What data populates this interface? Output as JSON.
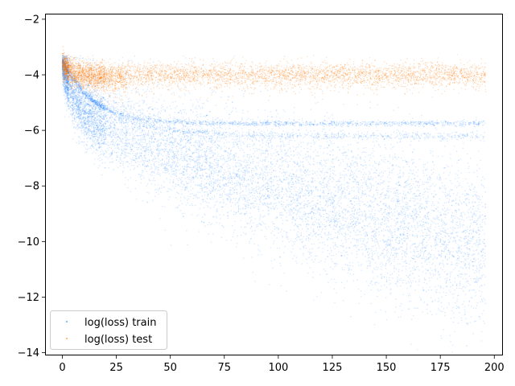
{
  "chart_data": {
    "type": "scatter",
    "title": "",
    "xlabel": "",
    "ylabel": "",
    "xlim": [
      -8,
      204
    ],
    "ylim": [
      -14.1,
      -1.8
    ],
    "xticks": [
      0,
      25,
      50,
      75,
      100,
      125,
      150,
      175,
      200
    ],
    "yticks": [
      -14,
      -12,
      -10,
      -8,
      -6,
      -4,
      -2
    ],
    "grid": false,
    "legend": {
      "position": "lower-left"
    },
    "series": [
      {
        "name": "log(loss) train",
        "color": "#1f77b4",
        "render_color": "#1a80ff",
        "approx_points": [
          [
            0,
            -2.6
          ],
          [
            1,
            -3.3
          ],
          [
            2,
            -3.6
          ],
          [
            5,
            -4.1
          ],
          [
            10,
            -4.6
          ],
          [
            25,
            -5.3
          ],
          [
            50,
            -5.8
          ],
          [
            100,
            -5.75
          ],
          [
            150,
            -5.75
          ],
          [
            196,
            -5.75
          ],
          [
            50,
            -6.0
          ],
          [
            100,
            -6.1
          ],
          [
            196,
            -6.2
          ],
          [
            25,
            -6.5
          ],
          [
            50,
            -7.3
          ],
          [
            75,
            -8.0
          ],
          [
            100,
            -8.6
          ],
          [
            125,
            -9.1
          ],
          [
            150,
            -9.6
          ],
          [
            175,
            -10.0
          ],
          [
            196,
            -10.3
          ],
          [
            196,
            -12.2
          ],
          [
            196,
            -8.5
          ]
        ]
      },
      {
        "name": "log(loss) test",
        "color": "#ff7f0e",
        "approx_points": [
          [
            0,
            -2.8
          ],
          [
            2,
            -3.6
          ],
          [
            5,
            -3.9
          ],
          [
            10,
            -4.0
          ],
          [
            25,
            -4.0
          ],
          [
            50,
            -4.0
          ],
          [
            75,
            -4.0
          ],
          [
            100,
            -4.0
          ],
          [
            125,
            -4.0
          ],
          [
            150,
            -4.0
          ],
          [
            175,
            -4.0
          ],
          [
            196,
            -4.0
          ]
        ]
      }
    ]
  }
}
